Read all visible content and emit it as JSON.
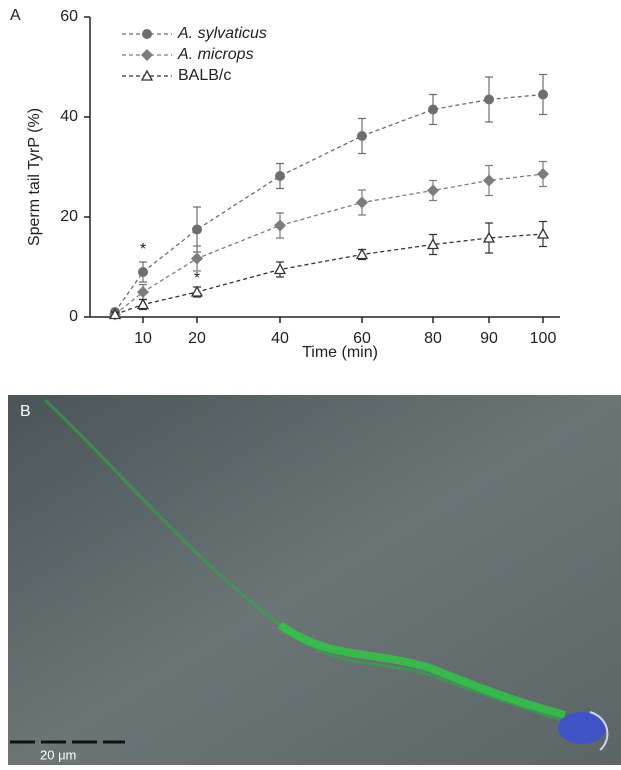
{
  "panel_a_label": "A",
  "panel_b_label": "B",
  "scale_bar_label": "20 μm",
  "chart_data": {
    "type": "line",
    "ylabel": "Sperm tail TyrP (%)",
    "xlabel": "Time (min)",
    "categories": [
      null,
      "10",
      "20",
      "40",
      "60",
      "80",
      "90",
      "100"
    ],
    "ylim": [
      0,
      60
    ],
    "yticks": [
      0,
      20,
      40,
      60
    ],
    "legend": "top-left",
    "series": [
      {
        "name": "A. sylvaticus",
        "color": "#6e6e6e",
        "marker": "circle",
        "italic": true,
        "values": [
          1,
          9,
          17.5,
          28.2,
          36.2,
          41.5,
          43.5,
          44.5
        ],
        "errors": [
          0.5,
          2,
          4.5,
          2.5,
          3.5,
          3,
          4.5,
          4
        ]
      },
      {
        "name": "A. microps",
        "color": "#7c7c7c",
        "marker": "diamond",
        "italic": true,
        "values": [
          0.5,
          5,
          11.7,
          18.3,
          22.9,
          25.3,
          27.3,
          28.6
        ],
        "errors": [
          0.5,
          1.5,
          2.5,
          2.5,
          2.5,
          2,
          3,
          2.5
        ]
      },
      {
        "name": "BALB/c",
        "color": "#333333",
        "marker": "triangle-open",
        "italic": false,
        "values": [
          0.5,
          2.5,
          5,
          9.5,
          12.5,
          14.5,
          15.8,
          16.6
        ],
        "errors": [
          0.5,
          1,
          1,
          1.5,
          1,
          2,
          3,
          2.5
        ]
      }
    ],
    "annotations": [
      "*",
      "*"
    ]
  }
}
